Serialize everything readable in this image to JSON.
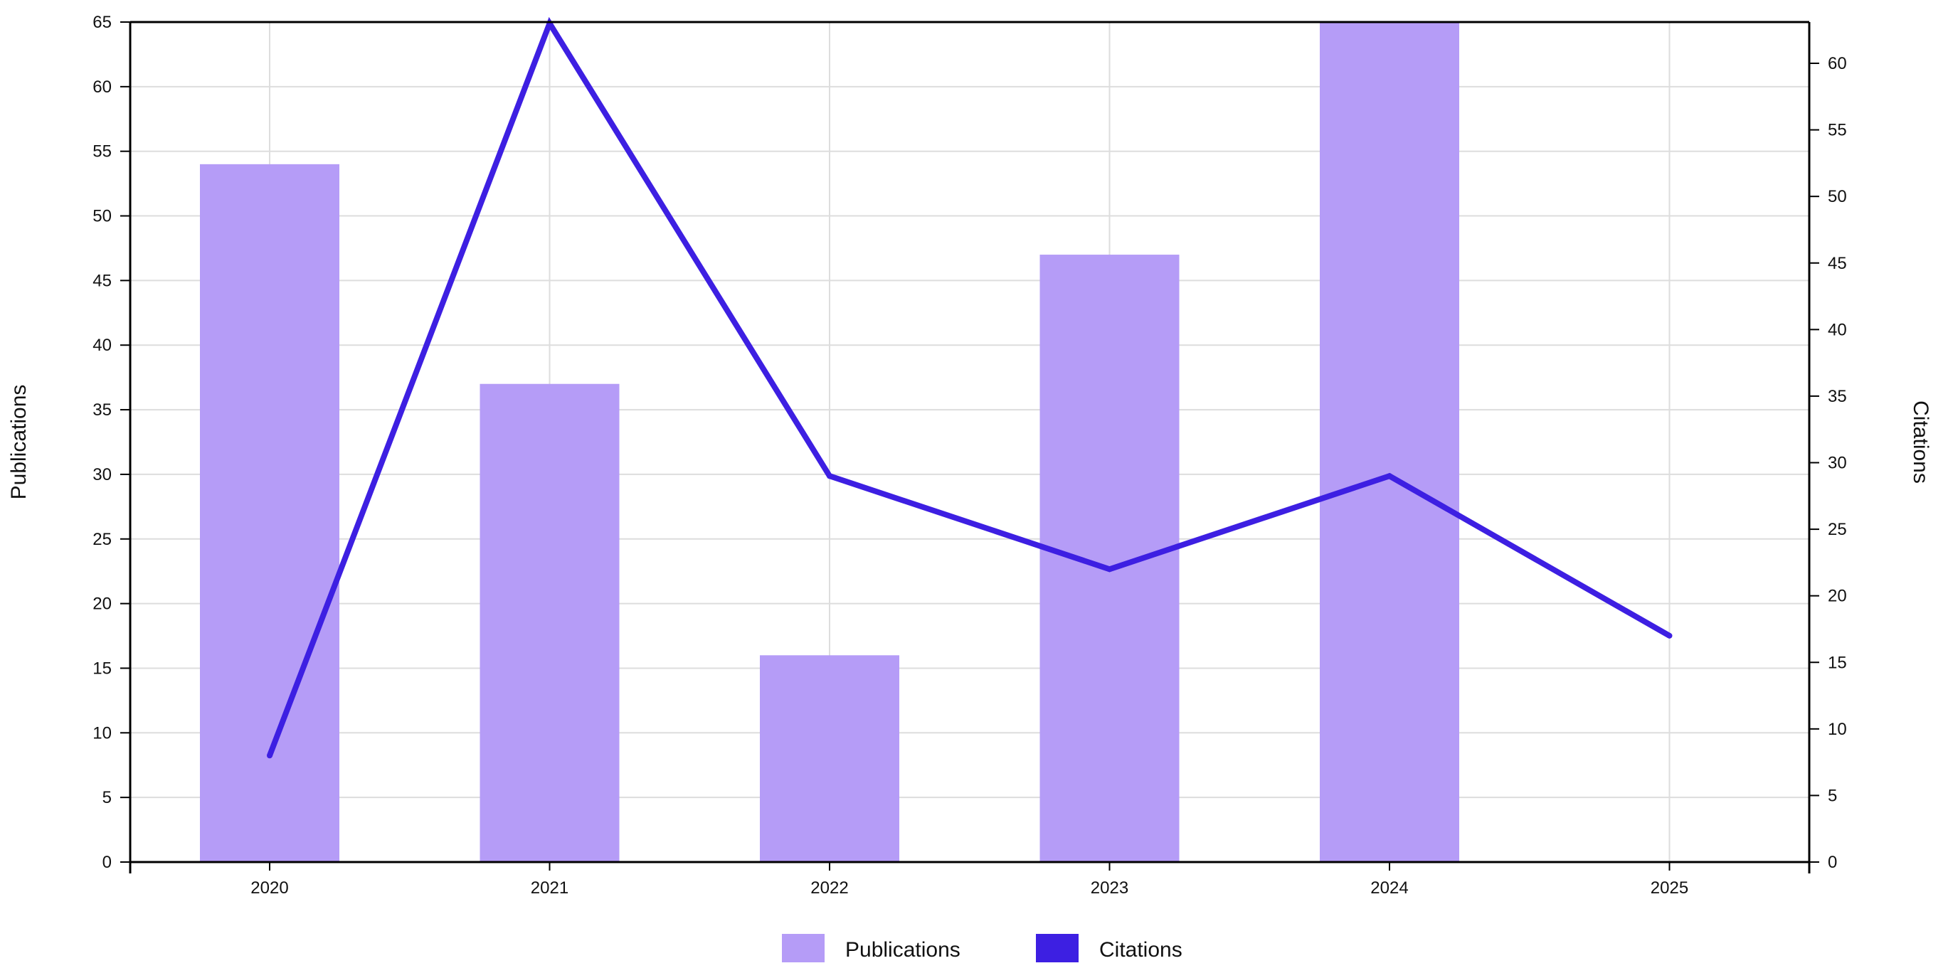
{
  "chart_data": {
    "type": "bar",
    "categories": [
      "2020",
      "2021",
      "2022",
      "2023",
      "2024",
      "2025"
    ],
    "series": [
      {
        "name": "Publications",
        "type": "bar",
        "axis": "left",
        "values": [
          54,
          37,
          16,
          47,
          66,
          0
        ],
        "color": "#b59cf7"
      },
      {
        "name": "Citations",
        "type": "line",
        "axis": "right",
        "values": [
          8,
          63,
          29,
          22,
          29,
          17
        ],
        "color": "#3d1fe2"
      }
    ],
    "ylabel": "Publications",
    "y2label": "Citations",
    "ylim": [
      0,
      65
    ],
    "y2lim": [
      0,
      63
    ],
    "yticks": [
      0,
      5,
      10,
      15,
      20,
      25,
      30,
      35,
      40,
      45,
      50,
      55,
      60,
      65
    ],
    "y2ticks": [
      0,
      5,
      10,
      15,
      20,
      25,
      30,
      35,
      40,
      45,
      50,
      55,
      60
    ],
    "grid": true,
    "legend_position": "bottom"
  }
}
